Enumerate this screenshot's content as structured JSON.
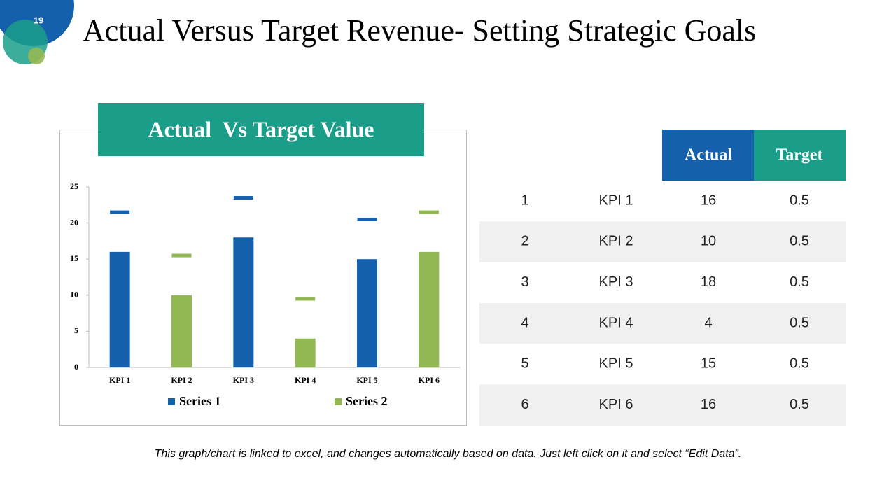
{
  "slide_number": "19",
  "title": "Actual Versus Target Revenue- Setting Strategic Goals",
  "chart_data": {
    "type": "bar",
    "title": "Actual  Vs Target Value",
    "categories": [
      "KPI 1",
      "KPI 2",
      "KPI 3",
      "KPI 4",
      "KPI 5",
      "KPI 6"
    ],
    "series": [
      {
        "name": "Series 1",
        "color": "#1560ad",
        "values": [
          16,
          null,
          18,
          null,
          15,
          null
        ],
        "target_values": [
          21.5,
          null,
          23.5,
          null,
          20.5,
          null
        ]
      },
      {
        "name": "Series 2",
        "color": "#92b853",
        "values": [
          null,
          10,
          null,
          4,
          null,
          16
        ],
        "target_values": [
          null,
          15.5,
          null,
          9.5,
          null,
          21.5
        ]
      }
    ],
    "ylim": [
      0,
      25
    ],
    "yticks": [
      0,
      5,
      10,
      15,
      20,
      25
    ],
    "grid": false,
    "legend": "bottom"
  },
  "table": {
    "header": [
      "Actual",
      "Target"
    ],
    "rows": [
      [
        1,
        "KPI 1",
        16,
        0.5
      ],
      [
        2,
        "KPI 2",
        10,
        0.5
      ],
      [
        3,
        "KPI 3",
        18,
        0.5
      ],
      [
        4,
        "KPI 4",
        4,
        0.5
      ],
      [
        5,
        "KPI 5",
        15,
        0.5
      ],
      [
        6,
        "KPI 6",
        16,
        0.5
      ]
    ]
  },
  "footnote": "This graph/chart is linked to excel, and changes automatically based on data. Just left click on it and select “Edit Data”."
}
